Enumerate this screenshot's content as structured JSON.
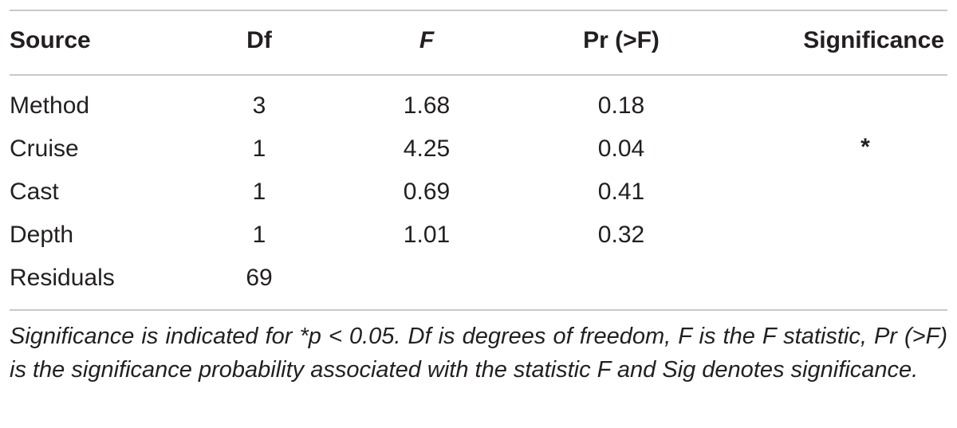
{
  "table": {
    "headers": {
      "source": "Source",
      "df": "Df",
      "f": "F",
      "pr": "Pr (>F)",
      "significance": "Significance"
    },
    "rows": [
      {
        "source": "Method",
        "df": "3",
        "f": "1.68",
        "pr": "0.18",
        "sig": ""
      },
      {
        "source": "Cruise",
        "df": "1",
        "f": "4.25",
        "pr": "0.04",
        "sig": "*"
      },
      {
        "source": "Cast",
        "df": "1",
        "f": "0.69",
        "pr": "0.41",
        "sig": ""
      },
      {
        "source": "Depth",
        "df": "1",
        "f": "1.01",
        "pr": "0.32",
        "sig": ""
      },
      {
        "source": "Residuals",
        "df": "69",
        "f": "",
        "pr": "",
        "sig": ""
      }
    ]
  },
  "footnote": "Significance is indicated for *p < 0.05. Df is degrees of freedom, F is the F statistic, Pr (>F) is the significance probability associated with the statistic F and Sig denotes significance."
}
